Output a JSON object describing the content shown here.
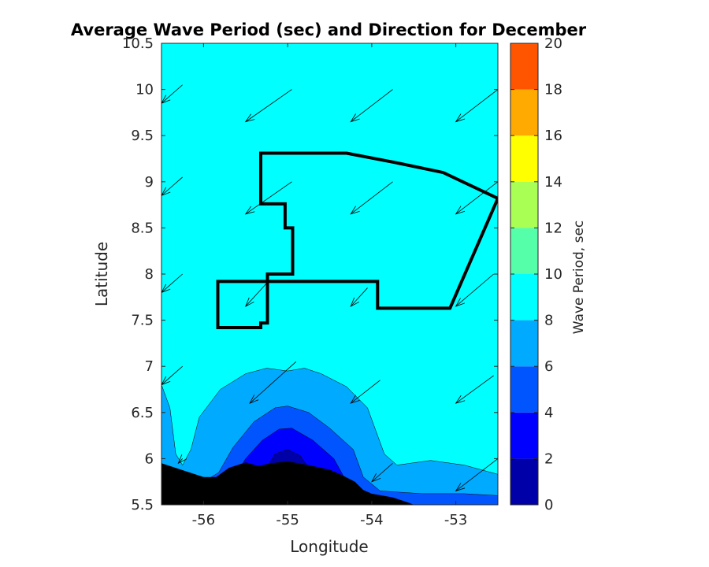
{
  "chart_data": {
    "type": "contour",
    "title": "Average Wave Period (sec) and Direction for December",
    "xlabel": "Longitude",
    "ylabel": "Latitude",
    "xlim": [
      -56.5,
      -52.5
    ],
    "ylim": [
      5.5,
      10.5
    ],
    "xticks": [
      -56,
      -55,
      -54,
      -53
    ],
    "xtick_labels": [
      "-56",
      "-55",
      "-54",
      "-53"
    ],
    "yticks": [
      5.5,
      6,
      6.5,
      7,
      7.5,
      8,
      8.5,
      9,
      9.5,
      10,
      10.5
    ],
    "ytick_labels": [
      "5.5",
      "6",
      "6.5",
      "7",
      "7.5",
      "8",
      "8.5",
      "9",
      "9.5",
      "10",
      "10.5"
    ],
    "colorbar": {
      "label": "Wave Period, sec",
      "range": [
        0,
        20
      ],
      "ticks": [
        0,
        2,
        4,
        6,
        8,
        10,
        12,
        14,
        16,
        18,
        20
      ],
      "tick_labels": [
        "0",
        "2",
        "4",
        "6",
        "8",
        "10",
        "12",
        "14",
        "16",
        "18",
        "20"
      ],
      "levels": [
        {
          "from": 0,
          "to": 2,
          "color": "#0000a8"
        },
        {
          "from": 2,
          "to": 4,
          "color": "#0000ff"
        },
        {
          "from": 4,
          "to": 6,
          "color": "#0055ff"
        },
        {
          "from": 6,
          "to": 8,
          "color": "#00aaff"
        },
        {
          "from": 8,
          "to": 10,
          "color": "#00ffff"
        },
        {
          "from": 10,
          "to": 12,
          "color": "#55ffaa"
        },
        {
          "from": 12,
          "to": 14,
          "color": "#aaff55"
        },
        {
          "from": 14,
          "to": 16,
          "color": "#ffff00"
        },
        {
          "from": 16,
          "to": 18,
          "color": "#ffaa00"
        },
        {
          "from": 18,
          "to": 20,
          "color": "#ff5500"
        }
      ]
    },
    "background_period_sec": 9,
    "period_contours": [
      {
        "level": 8,
        "points": [
          [
            -56.5,
            6.8
          ],
          [
            -56.4,
            6.55
          ],
          [
            -56.33,
            6.05
          ],
          [
            -56.25,
            5.93
          ],
          [
            -56.15,
            6.1
          ],
          [
            -56.05,
            6.45
          ],
          [
            -55.8,
            6.75
          ],
          [
            -55.5,
            6.92
          ],
          [
            -55.25,
            6.98
          ],
          [
            -55.0,
            6.95
          ],
          [
            -54.8,
            6.98
          ],
          [
            -54.6,
            6.92
          ],
          [
            -54.3,
            6.78
          ],
          [
            -54.05,
            6.55
          ],
          [
            -53.95,
            6.3
          ],
          [
            -53.85,
            6.05
          ],
          [
            -53.7,
            5.93
          ],
          [
            -53.3,
            5.98
          ],
          [
            -52.9,
            5.93
          ],
          [
            -52.5,
            5.83
          ],
          [
            -52.5,
            5.5
          ],
          [
            -56.5,
            5.5
          ]
        ]
      },
      {
        "level": 6,
        "points": [
          [
            -56.5,
            5.92
          ],
          [
            -56.2,
            5.85
          ],
          [
            -56.0,
            5.75
          ],
          [
            -55.82,
            5.85
          ],
          [
            -55.65,
            6.12
          ],
          [
            -55.4,
            6.4
          ],
          [
            -55.15,
            6.55
          ],
          [
            -55.0,
            6.57
          ],
          [
            -54.75,
            6.5
          ],
          [
            -54.5,
            6.33
          ],
          [
            -54.22,
            6.1
          ],
          [
            -54.1,
            5.8
          ],
          [
            -53.9,
            5.65
          ],
          [
            -53.4,
            5.62
          ],
          [
            -52.9,
            5.62
          ],
          [
            -52.5,
            5.6
          ],
          [
            -52.5,
            5.5
          ],
          [
            -56.5,
            5.5
          ]
        ]
      },
      {
        "level": 4,
        "points": [
          [
            -55.7,
            5.7
          ],
          [
            -55.5,
            6.0
          ],
          [
            -55.3,
            6.2
          ],
          [
            -55.1,
            6.32
          ],
          [
            -54.95,
            6.33
          ],
          [
            -54.7,
            6.2
          ],
          [
            -54.45,
            6.0
          ],
          [
            -54.3,
            5.75
          ],
          [
            -54.4,
            5.55
          ],
          [
            -55.6,
            5.55
          ]
        ]
      },
      {
        "level": 2,
        "points": [
          [
            -55.25,
            5.9
          ],
          [
            -55.15,
            6.05
          ],
          [
            -55.0,
            6.1
          ],
          [
            -54.85,
            6.03
          ],
          [
            -54.75,
            5.9
          ]
        ]
      }
    ],
    "land_polygon": [
      [
        -56.5,
        5.95
      ],
      [
        -56.0,
        5.8
      ],
      [
        -55.85,
        5.8
      ],
      [
        -55.7,
        5.9
      ],
      [
        -55.5,
        5.96
      ],
      [
        -55.35,
        5.92
      ],
      [
        -55.2,
        5.95
      ],
      [
        -55.0,
        5.97
      ],
      [
        -54.75,
        5.93
      ],
      [
        -54.5,
        5.88
      ],
      [
        -54.35,
        5.82
      ],
      [
        -54.2,
        5.75
      ],
      [
        -54.1,
        5.66
      ],
      [
        -54.0,
        5.62
      ],
      [
        -53.75,
        5.58
      ],
      [
        -53.55,
        5.52
      ],
      [
        -53.5,
        5.5
      ],
      [
        -56.5,
        5.5
      ]
    ],
    "boundary_polygon": [
      [
        -55.28,
        9.31
      ],
      [
        -54.3,
        9.31
      ],
      [
        -53.73,
        9.21
      ],
      [
        -53.15,
        9.1
      ],
      [
        -52.5,
        8.82
      ],
      [
        -53.07,
        7.63
      ],
      [
        -53.93,
        7.63
      ],
      [
        -53.93,
        7.92
      ],
      [
        -55.24,
        7.92
      ],
      [
        -55.24,
        8.0
      ],
      [
        -54.94,
        8.0
      ],
      [
        -54.94,
        8.5
      ],
      [
        -55.03,
        8.5
      ],
      [
        -55.03,
        8.76
      ],
      [
        -55.32,
        8.76
      ],
      [
        -55.32,
        9.31
      ]
    ],
    "boundary_loop": [
      [
        -55.24,
        7.92
      ],
      [
        -55.83,
        7.92
      ],
      [
        -55.83,
        7.42
      ],
      [
        -55.32,
        7.42
      ],
      [
        -55.32,
        7.47
      ],
      [
        -55.24,
        7.47
      ],
      [
        -55.24,
        7.92
      ]
    ],
    "direction_vectors": [
      {
        "lon": -56.5,
        "lat": 9.85,
        "dlon": 0.25,
        "dlat": 0.2
      },
      {
        "lon": -55.5,
        "lat": 9.65,
        "dlon": 0.55,
        "dlat": 0.35
      },
      {
        "lon": -54.25,
        "lat": 9.65,
        "dlon": 0.5,
        "dlat": 0.35
      },
      {
        "lon": -53.0,
        "lat": 9.65,
        "dlon": 0.5,
        "dlat": 0.35
      },
      {
        "lon": -56.5,
        "lat": 8.85,
        "dlon": 0.25,
        "dlat": 0.2
      },
      {
        "lon": -55.5,
        "lat": 8.65,
        "dlon": 0.55,
        "dlat": 0.35
      },
      {
        "lon": -54.25,
        "lat": 8.65,
        "dlon": 0.5,
        "dlat": 0.35
      },
      {
        "lon": -53.0,
        "lat": 8.65,
        "dlon": 0.5,
        "dlat": 0.35
      },
      {
        "lon": -56.5,
        "lat": 7.8,
        "dlon": 0.25,
        "dlat": 0.2
      },
      {
        "lon": -55.5,
        "lat": 7.65,
        "dlon": 0.25,
        "dlat": 0.25
      },
      {
        "lon": -54.25,
        "lat": 7.65,
        "dlon": 0.2,
        "dlat": 0.2
      },
      {
        "lon": -53.0,
        "lat": 7.65,
        "dlon": 0.45,
        "dlat": 0.35
      },
      {
        "lon": -56.5,
        "lat": 6.8,
        "dlon": 0.25,
        "dlat": 0.2
      },
      {
        "lon": -55.45,
        "lat": 6.6,
        "dlon": 0.55,
        "dlat": 0.45
      },
      {
        "lon": -54.25,
        "lat": 6.6,
        "dlon": 0.35,
        "dlat": 0.25
      },
      {
        "lon": -53.0,
        "lat": 6.6,
        "dlon": 0.45,
        "dlat": 0.3
      },
      {
        "lon": -56.3,
        "lat": 5.95,
        "dlon": 0.05,
        "dlat": 0.05
      },
      {
        "lon": -54.0,
        "lat": 5.75,
        "dlon": 0.25,
        "dlat": 0.2
      },
      {
        "lon": -53.0,
        "lat": 5.65,
        "dlon": 0.5,
        "dlat": 0.35
      }
    ]
  }
}
